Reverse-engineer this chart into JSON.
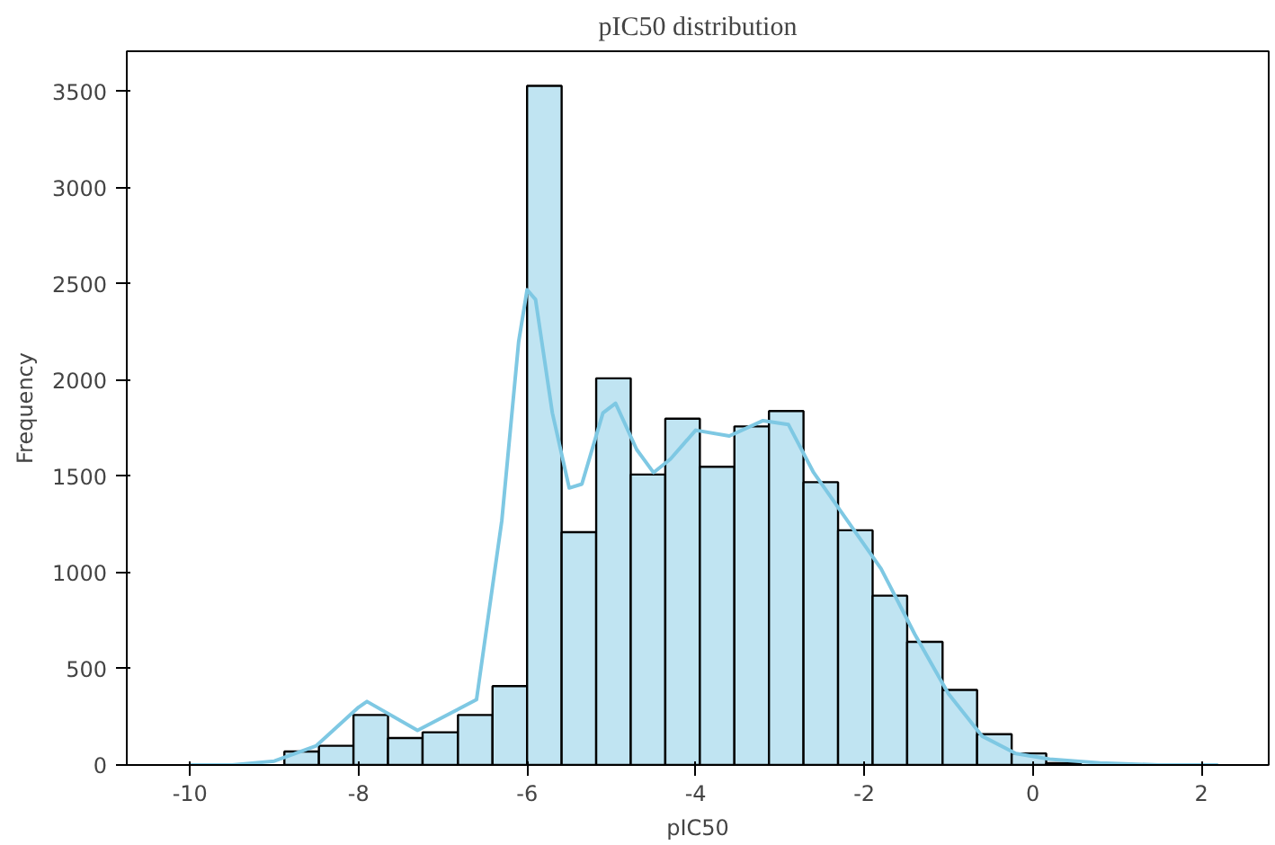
{
  "chart_data": {
    "type": "histogram",
    "title": "pIC50 distribution",
    "xlabel": "pIC50",
    "ylabel": "Frequency",
    "color": "#c0e4f2",
    "bins": [
      -8.88,
      -8.47,
      -8.06,
      -7.65,
      -7.24,
      -6.82,
      -6.41,
      -6.0,
      -5.59,
      -5.18,
      -4.77,
      -4.36,
      -3.95,
      -3.54,
      -3.13,
      -2.72,
      -2.31,
      -1.9,
      -1.49,
      -1.07,
      -0.66,
      -0.25,
      0.16,
      0.57
    ],
    "values": [
      70,
      100,
      260,
      140,
      170,
      260,
      410,
      3530,
      1210,
      2010,
      1510,
      1800,
      1550,
      1760,
      1840,
      1470,
      1220,
      880,
      640,
      390,
      160,
      60,
      10
    ],
    "series": [
      {
        "type": "line",
        "color": "#7ec8e3",
        "x": [
          -10,
          -9.5,
          -9,
          -8.5,
          -8,
          -7.9,
          -7.3,
          -6.6,
          -6.3,
          -6.1,
          -6.0,
          -5.9,
          -5.7,
          -5.5,
          -5.35,
          -5.1,
          -4.95,
          -4.7,
          -4.5,
          -4.3,
          -4.0,
          -3.6,
          -3.2,
          -2.9,
          -2.6,
          -2.2,
          -1.8,
          -1.4,
          -1.0,
          -0.6,
          -0.2,
          0.2,
          0.8,
          1.5,
          2.2
        ],
        "values": [
          0,
          0,
          20,
          100,
          300,
          330,
          180,
          340,
          1270,
          2200,
          2470,
          2420,
          1830,
          1440,
          1460,
          1830,
          1880,
          1640,
          1520,
          1590,
          1740,
          1710,
          1790,
          1770,
          1520,
          1270,
          1020,
          680,
          370,
          150,
          60,
          30,
          10,
          0,
          0
        ]
      }
    ],
    "xlim": [
      -10.75,
      2.8
    ],
    "ylim": [
      0,
      3710
    ],
    "xticks": [
      -10,
      -8,
      -6,
      -4,
      -2,
      0,
      2
    ],
    "yticks": [
      0,
      500,
      1000,
      1500,
      2000,
      2500,
      3000,
      3500
    ],
    "grid": false
  }
}
